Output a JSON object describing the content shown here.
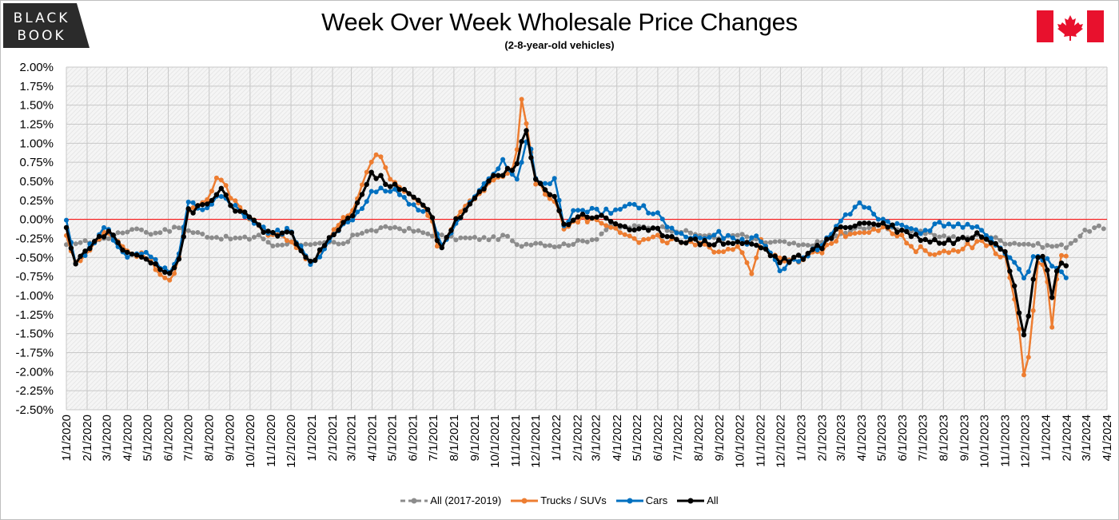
{
  "logo": {
    "line1": "BLACK",
    "line2": "BOOK"
  },
  "flag_icon": "canada-flag-icon",
  "colors": {
    "all_2017_2019": "#8c8c8c",
    "trucks": "#ed7d31",
    "cars": "#0070c0",
    "all": "#000000",
    "zero_line": "#ff0000"
  },
  "chart_data": {
    "type": "line",
    "title": "Week Over Week Wholesale Price Changes",
    "subtitle": "(2-8-year-old vehicles)",
    "ylim": [
      -2.5,
      2.0
    ],
    "y_ticks": [
      "2.00%",
      "1.75%",
      "1.50%",
      "1.25%",
      "1.00%",
      "0.75%",
      "0.50%",
      "0.25%",
      "0.00%",
      "-0.25%",
      "-0.50%",
      "-0.75%",
      "-1.00%",
      "-1.25%",
      "-1.50%",
      "-1.75%",
      "-2.00%",
      "-2.25%",
      "-2.50%"
    ],
    "x_ticks": [
      "1/1/2020",
      "2/1/2020",
      "3/1/2020",
      "4/1/2020",
      "5/1/2020",
      "6/1/2020",
      "7/1/2020",
      "8/1/2020",
      "9/1/2020",
      "10/1/2020",
      "11/1/2020",
      "12/1/2020",
      "1/1/2021",
      "2/1/2021",
      "3/1/2021",
      "4/1/2021",
      "5/1/2021",
      "6/1/2021",
      "7/1/2021",
      "8/1/2021",
      "9/1/2021",
      "10/1/2021",
      "11/1/2021",
      "12/1/2021",
      "1/1/2022",
      "2/1/2022",
      "3/1/2022",
      "4/1/2022",
      "5/1/2022",
      "6/1/2022",
      "7/1/2022",
      "8/1/2022",
      "9/1/2022",
      "10/1/2022",
      "11/1/2022",
      "12/1/2022",
      "1/1/2023",
      "2/1/2023",
      "3/1/2023",
      "4/1/2023",
      "5/1/2023",
      "6/1/2023",
      "7/1/2023",
      "8/1/2023",
      "9/1/2023",
      "10/1/2023",
      "11/1/2023",
      "12/1/2023",
      "1/1/2024",
      "2/1/2024",
      "3/1/2024",
      "4/1/2024"
    ],
    "grid": true,
    "legend_position": "bottom",
    "series": [
      {
        "name": "All (2017-2019)",
        "style": "dashed",
        "keypoints": [
          [
            "1/1/2020",
            -0.35
          ],
          [
            "1/15/2020",
            -0.3
          ],
          [
            "2/1/2020",
            -0.3
          ],
          [
            "3/1/2020",
            -0.25
          ],
          [
            "4/1/2020",
            -0.15
          ],
          [
            "4/20/2020",
            -0.1
          ],
          [
            "5/1/2020",
            -0.2
          ],
          [
            "5/20/2020",
            -0.15
          ],
          [
            "6/1/2020",
            -0.15
          ],
          [
            "6/15/2020",
            -0.1
          ],
          [
            "7/1/2020",
            -0.15
          ],
          [
            "8/1/2020",
            -0.22
          ],
          [
            "9/1/2020",
            -0.25
          ],
          [
            "10/1/2020",
            -0.25
          ],
          [
            "10/15/2020",
            -0.2
          ],
          [
            "11/1/2020",
            -0.35
          ],
          [
            "12/1/2020",
            -0.3
          ],
          [
            "1/1/2021",
            -0.35
          ],
          [
            "2/1/2021",
            -0.3
          ],
          [
            "2/20/2021",
            -0.35
          ],
          [
            "3/1/2021",
            -0.2
          ],
          [
            "4/1/2021",
            -0.15
          ],
          [
            "5/1/2021",
            -0.1
          ],
          [
            "6/1/2021",
            -0.15
          ],
          [
            "7/1/2021",
            -0.2
          ],
          [
            "8/1/2021",
            -0.25
          ],
          [
            "9/1/2021",
            -0.25
          ],
          [
            "10/1/2021",
            -0.25
          ],
          [
            "10/20/2021",
            -0.22
          ],
          [
            "11/1/2021",
            -0.35
          ],
          [
            "12/1/2021",
            -0.3
          ],
          [
            "1/1/2022",
            -0.35
          ],
          [
            "2/1/2022",
            -0.3
          ],
          [
            "3/1/2022",
            -0.25
          ],
          [
            "3/20/2022",
            -0.1
          ],
          [
            "4/1/2022",
            -0.1
          ],
          [
            "5/1/2022",
            -0.1
          ],
          [
            "6/1/2022",
            -0.1
          ],
          [
            "7/1/2022",
            -0.15
          ],
          [
            "8/1/2022",
            -0.2
          ],
          [
            "9/1/2022",
            -0.25
          ],
          [
            "10/1/2022",
            -0.2
          ],
          [
            "11/1/2022",
            -0.3
          ],
          [
            "12/1/2022",
            -0.3
          ],
          [
            "1/1/2023",
            -0.35
          ],
          [
            "2/1/2023",
            -0.3
          ],
          [
            "3/1/2023",
            -0.2
          ],
          [
            "4/1/2023",
            -0.1
          ],
          [
            "5/1/2023",
            -0.1
          ],
          [
            "6/1/2023",
            -0.12
          ],
          [
            "7/1/2023",
            -0.18
          ],
          [
            "8/1/2023",
            -0.22
          ],
          [
            "9/1/2023",
            -0.25
          ],
          [
            "10/1/2023",
            -0.2
          ],
          [
            "11/1/2023",
            -0.3
          ],
          [
            "12/1/2023",
            -0.32
          ],
          [
            "1/1/2024",
            -0.35
          ],
          [
            "2/1/2024",
            -0.35
          ],
          [
            "3/1/2024",
            -0.15
          ],
          [
            "3/20/2024",
            -0.1
          ],
          [
            "4/1/2024",
            -0.18
          ]
        ]
      },
      {
        "name": "Trucks / SUVs",
        "style": "solid",
        "keypoints": [
          [
            "1/1/2020",
            -0.25
          ],
          [
            "1/15/2020",
            -0.55
          ],
          [
            "2/1/2020",
            -0.45
          ],
          [
            "3/1/2020",
            -0.15
          ],
          [
            "4/1/2020",
            -0.4
          ],
          [
            "5/1/2020",
            -0.5
          ],
          [
            "6/1/2020",
            -0.8
          ],
          [
            "6/15/2020",
            -0.6
          ],
          [
            "7/1/2020",
            0.1
          ],
          [
            "8/1/2020",
            0.3
          ],
          [
            "8/15/2020",
            0.62
          ],
          [
            "9/1/2020",
            0.3
          ],
          [
            "10/1/2020",
            0.0
          ],
          [
            "11/1/2020",
            -0.2
          ],
          [
            "12/1/2020",
            -0.25
          ],
          [
            "1/1/2021",
            -0.6
          ],
          [
            "2/1/2021",
            -0.15
          ],
          [
            "3/1/2021",
            0.1
          ],
          [
            "4/1/2021",
            0.75
          ],
          [
            "4/10/2021",
            0.85
          ],
          [
            "5/1/2021",
            0.5
          ],
          [
            "6/1/2021",
            0.3
          ],
          [
            "7/1/2021",
            0.0
          ],
          [
            "7/10/2021",
            -0.5
          ],
          [
            "8/1/2021",
            0.0
          ],
          [
            "9/1/2021",
            0.3
          ],
          [
            "10/1/2021",
            0.5
          ],
          [
            "11/1/2021",
            0.7
          ],
          [
            "11/10/2021",
            1.6
          ],
          [
            "11/20/2021",
            1.1
          ],
          [
            "12/1/2021",
            0.5
          ],
          [
            "1/1/2022",
            0.2
          ],
          [
            "1/10/2022",
            -0.1
          ],
          [
            "2/1/2022",
            0.0
          ],
          [
            "3/1/2022",
            0.0
          ],
          [
            "4/1/2022",
            -0.1
          ],
          [
            "5/1/2022",
            -0.3
          ],
          [
            "6/1/2022",
            -0.25
          ],
          [
            "7/1/2022",
            -0.3
          ],
          [
            "8/1/2022",
            -0.35
          ],
          [
            "9/1/2022",
            -0.4
          ],
          [
            "10/1/2022",
            -0.35
          ],
          [
            "10/20/2022",
            -0.7
          ],
          [
            "11/1/2022",
            -0.3
          ],
          [
            "12/1/2022",
            -0.55
          ],
          [
            "1/1/2023",
            -0.55
          ],
          [
            "2/1/2023",
            -0.4
          ],
          [
            "3/1/2023",
            -0.2
          ],
          [
            "4/1/2023",
            -0.15
          ],
          [
            "5/1/2023",
            -0.1
          ],
          [
            "6/1/2023",
            -0.25
          ],
          [
            "6/15/2023",
            -0.4
          ],
          [
            "7/1/2023",
            -0.4
          ],
          [
            "8/1/2023",
            -0.45
          ],
          [
            "9/1/2023",
            -0.35
          ],
          [
            "10/1/2023",
            -0.3
          ],
          [
            "11/1/2023",
            -0.5
          ],
          [
            "11/20/2023",
            -1.3
          ],
          [
            "12/1/2023",
            -2.22
          ],
          [
            "12/10/2023",
            -1.45
          ],
          [
            "12/20/2023",
            -0.6
          ],
          [
            "1/1/2024",
            -0.6
          ],
          [
            "1/10/2024",
            -1.45
          ],
          [
            "1/20/2024",
            -0.45
          ],
          [
            "2/1/2024",
            -0.45
          ]
        ]
      },
      {
        "name": "Cars",
        "style": "solid",
        "keypoints": [
          [
            "1/1/2020",
            -0.05
          ],
          [
            "1/15/2020",
            -0.6
          ],
          [
            "2/1/2020",
            -0.4
          ],
          [
            "3/1/2020",
            -0.1
          ],
          [
            "4/1/2020",
            -0.5
          ],
          [
            "5/1/2020",
            -0.45
          ],
          [
            "6/1/2020",
            -0.7
          ],
          [
            "6/15/2020",
            -0.5
          ],
          [
            "7/1/2020",
            0.2
          ],
          [
            "8/1/2020",
            0.15
          ],
          [
            "8/15/2020",
            0.35
          ],
          [
            "9/1/2020",
            0.2
          ],
          [
            "10/1/2020",
            0.0
          ],
          [
            "11/1/2020",
            -0.2
          ],
          [
            "12/1/2020",
            -0.15
          ],
          [
            "1/1/2021",
            -0.65
          ],
          [
            "2/1/2021",
            -0.2
          ],
          [
            "3/1/2021",
            0.0
          ],
          [
            "4/1/2021",
            0.35
          ],
          [
            "5/1/2021",
            0.4
          ],
          [
            "6/1/2021",
            0.2
          ],
          [
            "7/1/2021",
            0.05
          ],
          [
            "7/10/2021",
            -0.35
          ],
          [
            "8/1/2021",
            -0.1
          ],
          [
            "9/1/2021",
            0.3
          ],
          [
            "10/1/2021",
            0.6
          ],
          [
            "10/15/2021",
            0.8
          ],
          [
            "11/1/2021",
            0.45
          ],
          [
            "11/20/2021",
            1.1
          ],
          [
            "12/1/2021",
            0.5
          ],
          [
            "1/1/2022",
            0.5
          ],
          [
            "1/10/2022",
            -0.1
          ],
          [
            "2/1/2022",
            0.15
          ],
          [
            "3/1/2022",
            0.1
          ],
          [
            "4/1/2022",
            0.1
          ],
          [
            "5/1/2022",
            0.2
          ],
          [
            "6/1/2022",
            0.05
          ],
          [
            "7/1/2022",
            -0.2
          ],
          [
            "8/1/2022",
            -0.25
          ],
          [
            "9/1/2022",
            -0.2
          ],
          [
            "10/1/2022",
            -0.3
          ],
          [
            "11/1/2022",
            -0.25
          ],
          [
            "12/1/2022",
            -0.65
          ],
          [
            "1/1/2023",
            -0.5
          ],
          [
            "2/1/2023",
            -0.35
          ],
          [
            "3/1/2023",
            0.0
          ],
          [
            "4/1/2023",
            0.2
          ],
          [
            "5/1/2023",
            0.0
          ],
          [
            "6/1/2023",
            -0.1
          ],
          [
            "7/1/2023",
            -0.15
          ],
          [
            "8/1/2023",
            -0.05
          ],
          [
            "9/1/2023",
            -0.1
          ],
          [
            "10/1/2023",
            -0.15
          ],
          [
            "11/1/2023",
            -0.45
          ],
          [
            "11/20/2023",
            -0.6
          ],
          [
            "12/1/2023",
            -0.85
          ],
          [
            "12/10/2023",
            -0.5
          ],
          [
            "1/1/2024",
            -0.5
          ],
          [
            "1/15/2024",
            -0.65
          ],
          [
            "2/1/2024",
            -0.75
          ]
        ]
      },
      {
        "name": "All",
        "style": "solid",
        "keypoints": [
          [
            "1/1/2020",
            -0.15
          ],
          [
            "1/15/2020",
            -0.55
          ],
          [
            "2/1/2020",
            -0.4
          ],
          [
            "3/1/2020",
            -0.15
          ],
          [
            "4/1/2020",
            -0.45
          ],
          [
            "5/1/2020",
            -0.5
          ],
          [
            "6/1/2020",
            -0.7
          ],
          [
            "6/15/2020",
            -0.6
          ],
          [
            "7/1/2020",
            0.1
          ],
          [
            "8/1/2020",
            0.2
          ],
          [
            "8/20/2020",
            0.42
          ],
          [
            "9/1/2020",
            0.2
          ],
          [
            "10/1/2020",
            0.0
          ],
          [
            "11/1/2020",
            -0.2
          ],
          [
            "12/1/2020",
            -0.2
          ],
          [
            "1/1/2021",
            -0.6
          ],
          [
            "2/1/2021",
            -0.2
          ],
          [
            "3/1/2021",
            0.05
          ],
          [
            "4/1/2021",
            0.6
          ],
          [
            "5/1/2021",
            0.45
          ],
          [
            "6/1/2021",
            0.3
          ],
          [
            "7/1/2021",
            0.05
          ],
          [
            "7/10/2021",
            -0.42
          ],
          [
            "8/1/2021",
            -0.05
          ],
          [
            "9/1/2021",
            0.25
          ],
          [
            "10/1/2021",
            0.6
          ],
          [
            "11/1/2021",
            0.65
          ],
          [
            "11/15/2021",
            1.22
          ],
          [
            "12/1/2021",
            0.5
          ],
          [
            "1/1/2022",
            0.3
          ],
          [
            "1/10/2022",
            -0.1
          ],
          [
            "2/1/2022",
            0.05
          ],
          [
            "3/1/2022",
            0.05
          ],
          [
            "4/1/2022",
            -0.05
          ],
          [
            "5/1/2022",
            -0.15
          ],
          [
            "6/1/2022",
            -0.15
          ],
          [
            "7/1/2022",
            -0.25
          ],
          [
            "8/1/2022",
            -0.3
          ],
          [
            "9/1/2022",
            -0.3
          ],
          [
            "10/1/2022",
            -0.3
          ],
          [
            "11/1/2022",
            -0.35
          ],
          [
            "12/1/2022",
            -0.55
          ],
          [
            "1/1/2023",
            -0.5
          ],
          [
            "2/1/2023",
            -0.35
          ],
          [
            "3/1/2023",
            -0.1
          ],
          [
            "4/1/2023",
            -0.05
          ],
          [
            "5/1/2023",
            -0.05
          ],
          [
            "6/1/2023",
            -0.15
          ],
          [
            "7/1/2023",
            -0.25
          ],
          [
            "8/1/2023",
            -0.3
          ],
          [
            "9/1/2023",
            -0.25
          ],
          [
            "10/1/2023",
            -0.2
          ],
          [
            "11/1/2023",
            -0.4
          ],
          [
            "11/20/2023",
            -1.1
          ],
          [
            "12/1/2023",
            -1.57
          ],
          [
            "12/10/2023",
            -0.95
          ],
          [
            "12/20/2023",
            -0.5
          ],
          [
            "1/1/2024",
            -0.5
          ],
          [
            "1/10/2024",
            -1.05
          ],
          [
            "1/20/2024",
            -0.5
          ],
          [
            "2/1/2024",
            -0.6
          ]
        ]
      }
    ]
  }
}
